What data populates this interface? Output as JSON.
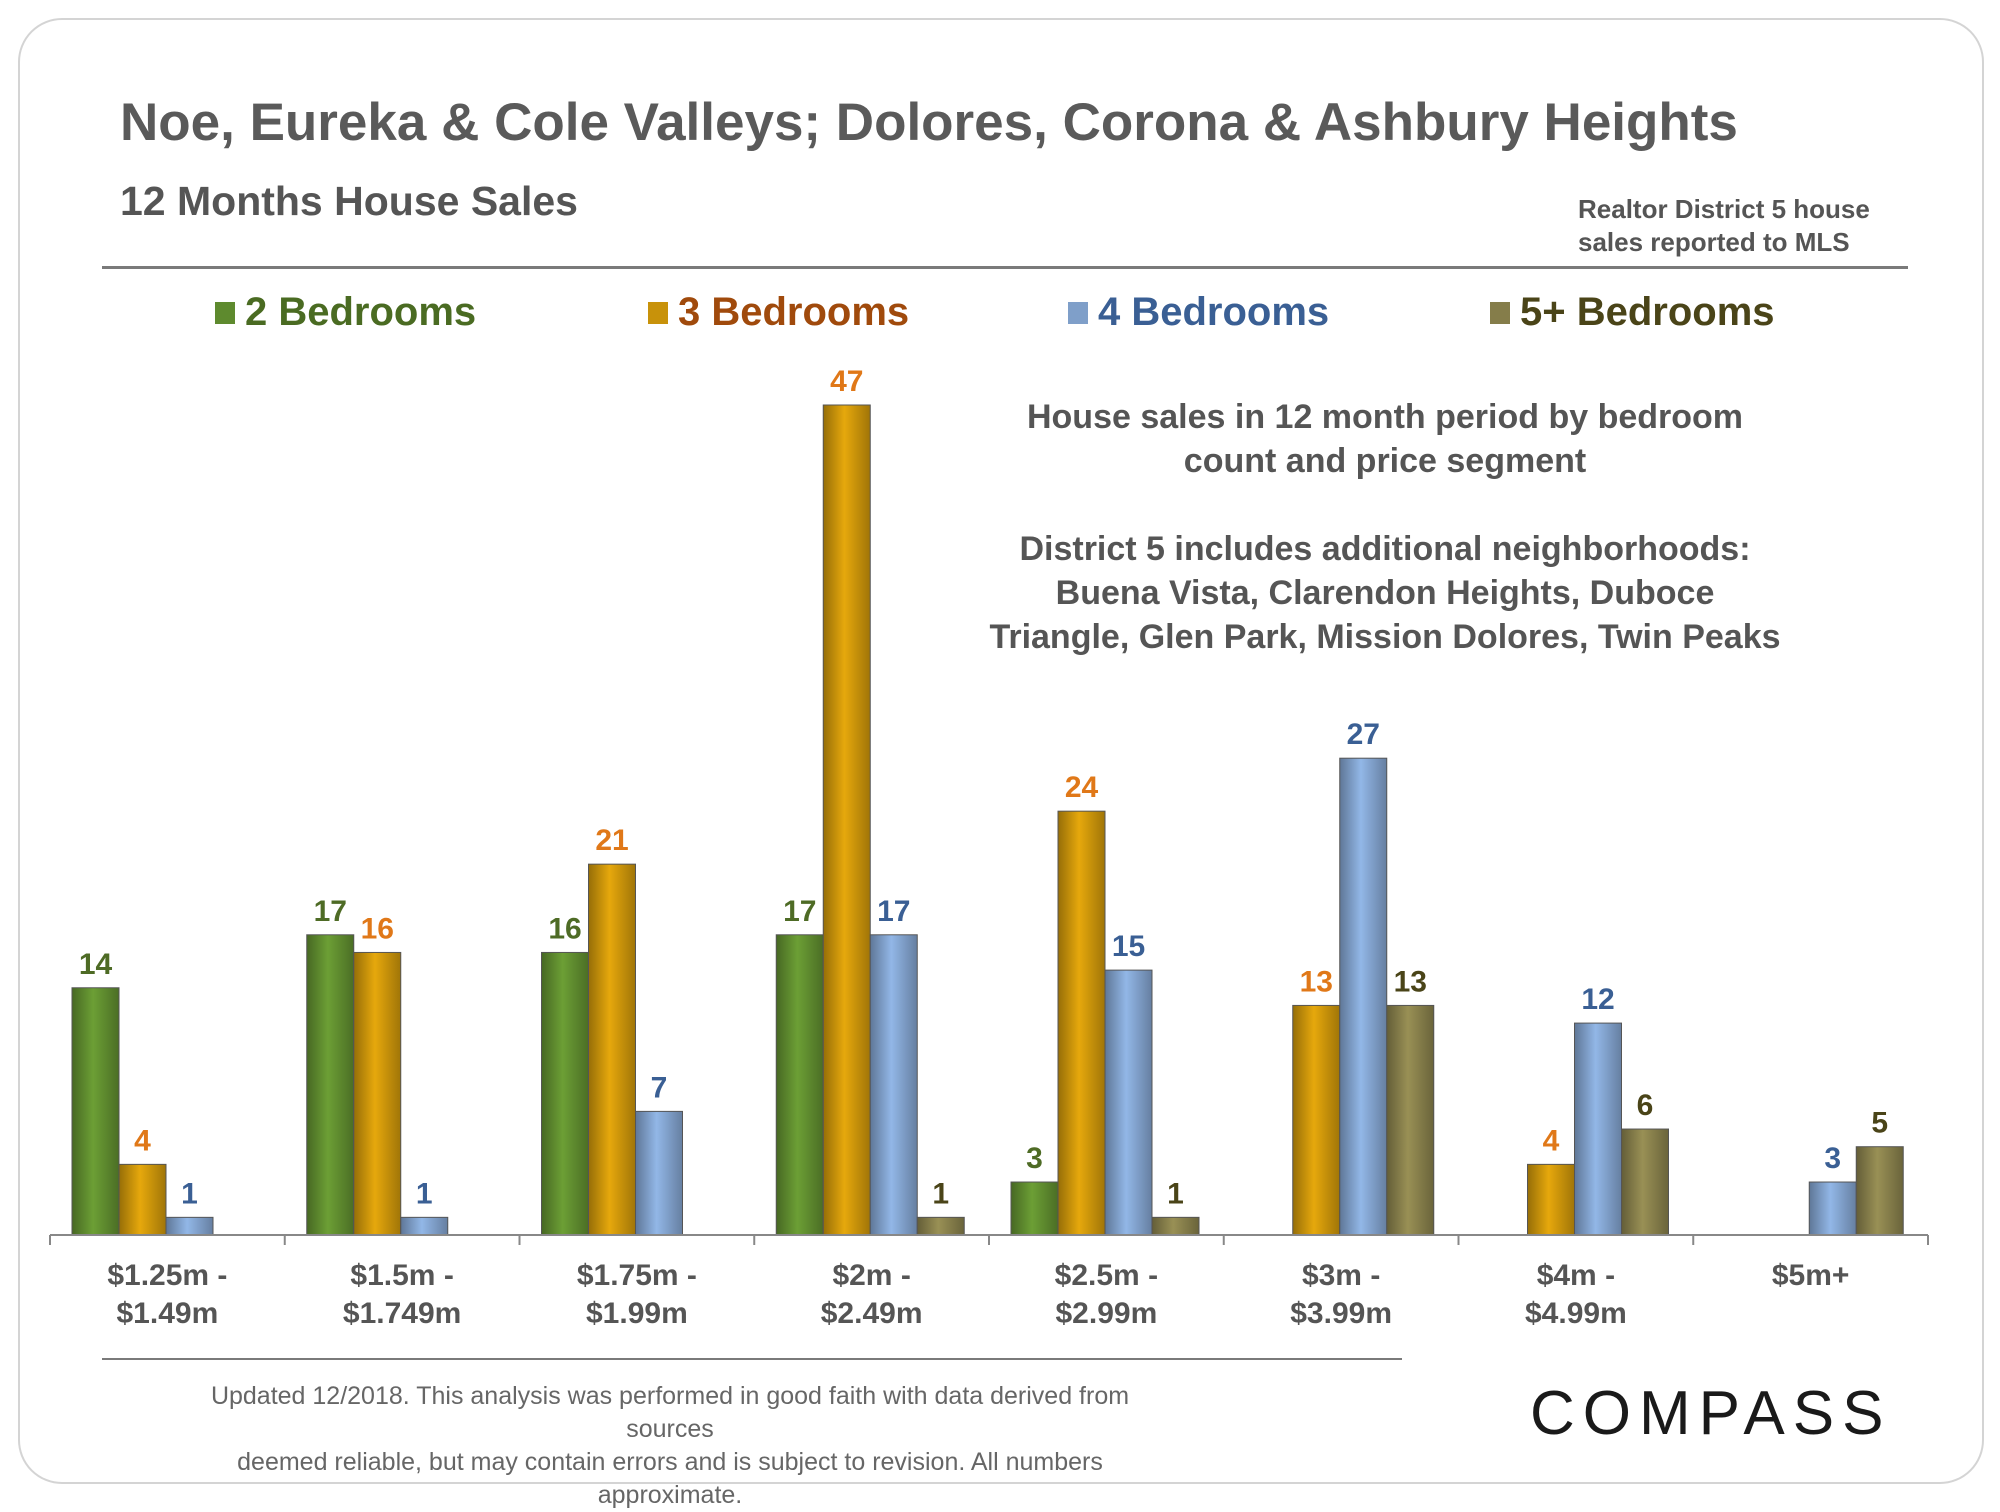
{
  "header": {
    "title": "Noe, Eureka & Cole Valleys; Dolores, Corona & Ashbury Heights",
    "subtitle": "12 Months House Sales",
    "source_line1": "Realtor District 5 house",
    "source_line2": "sales reported to MLS"
  },
  "note": {
    "line1": "House sales in 12 month period by bedroom",
    "line2": "count and price segment",
    "line3": "District 5 includes additional neighborhoods:",
    "line4": "Buena Vista, Clarendon Heights, Duboce",
    "line5": "Triangle, Glen Park, Mission Dolores, Twin Peaks"
  },
  "footer": {
    "disclaimer_line1": "Updated 12/2018. This analysis was performed in good faith with data derived from sources",
    "disclaimer_line2": "deemed reliable, but may contain errors and is subject to revision. All numbers approximate.",
    "logo_text": "COMPASS"
  },
  "chart_data": {
    "type": "bar",
    "categories": [
      [
        "$1.25m -",
        "$1.49m"
      ],
      [
        "$1.5m -",
        "$1.749m"
      ],
      [
        "$1.75m -",
        "$1.99m"
      ],
      [
        "$2m -",
        "$2.49m"
      ],
      [
        "$2.5m -",
        "$2.99m"
      ],
      [
        "$3m -",
        "$3.99m"
      ],
      [
        "$4m -",
        "$4.99m"
      ],
      [
        "$5m+"
      ]
    ],
    "series": [
      {
        "name": "2 Bedrooms",
        "color": "#5e8a2e",
        "label_color": "#4e6b25",
        "legend_color": "#4a6b22",
        "values": [
          14,
          17,
          16,
          17,
          3,
          null,
          null,
          null
        ]
      },
      {
        "name": "3 Bedrooms",
        "color": "#c8920a",
        "label_color": "#e07818",
        "legend_color": "#a04a0c",
        "values": [
          4,
          16,
          21,
          47,
          24,
          13,
          4,
          null
        ]
      },
      {
        "name": "4 Bedrooms",
        "color": "#7f9fc9",
        "label_color": "#3a5f94",
        "legend_color": "#3a5f94",
        "values": [
          1,
          1,
          7,
          17,
          15,
          27,
          12,
          3
        ]
      },
      {
        "name": "5+ Bedrooms",
        "color": "#857d4a",
        "label_color": "#4a4418",
        "legend_color": "#4a4418",
        "values": [
          null,
          null,
          null,
          1,
          1,
          13,
          6,
          5
        ]
      }
    ],
    "ylim": [
      0,
      47
    ],
    "legend_position": "top",
    "grid": false
  }
}
